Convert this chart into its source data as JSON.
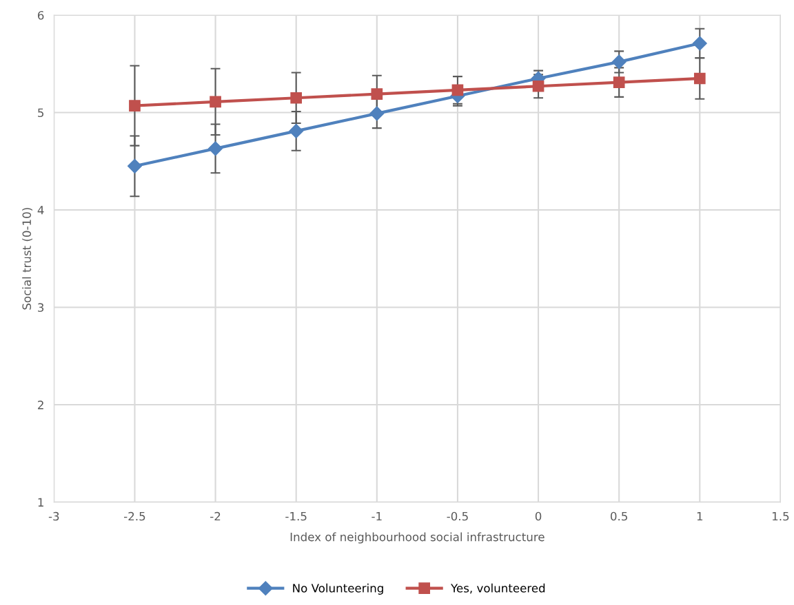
{
  "chart_data": {
    "type": "line",
    "xlabel": "Index of neighbourhood social infrastructure",
    "ylabel": "Social trust (0-10)",
    "x": [
      -2.5,
      -2,
      -1.5,
      -1,
      -0.5,
      0,
      0.5,
      1
    ],
    "series": [
      {
        "name": "No Volunteering",
        "color": "#4f81bd",
        "marker": "diamond",
        "values": [
          4.45,
          4.63,
          4.81,
          4.99,
          5.17,
          5.35,
          5.52,
          5.71
        ],
        "errors": [
          0.31,
          0.25,
          0.2,
          0.15,
          0.1,
          0.08,
          0.11,
          0.15
        ]
      },
      {
        "name": "Yes, volunteered",
        "color": "#c0504d",
        "marker": "square",
        "values": [
          5.07,
          5.11,
          5.15,
          5.19,
          5.23,
          5.27,
          5.31,
          5.35
        ],
        "errors": [
          0.41,
          0.34,
          0.26,
          0.19,
          0.14,
          0.12,
          0.15,
          0.21
        ]
      }
    ],
    "xlim": [
      -3,
      1.5
    ],
    "xticks": [
      -3,
      -2.5,
      -2,
      -1.5,
      -1,
      -0.5,
      0,
      0.5,
      1,
      1.5
    ],
    "ylim": [
      1,
      6
    ],
    "yticks": [
      1,
      2,
      3,
      4,
      5,
      6
    ],
    "grid": true,
    "legend": "bottom",
    "line_style": "solid"
  }
}
